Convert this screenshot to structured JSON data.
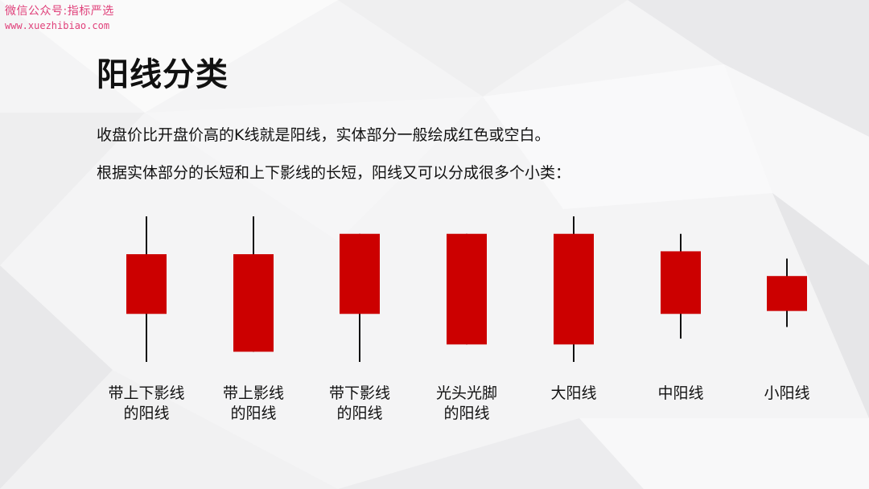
{
  "watermark": {
    "line1": "微信公众号:指标严选",
    "line2": "www.xuezhibiao.com"
  },
  "title": "阳线分类",
  "description": [
    "收盘价比开盘价高的K线就是阳线，实体部分一般绘成红色或空白。",
    "根据实体部分的长短和上下影线的长短，阳线又可以分成很多个小类："
  ],
  "colors": {
    "candle_body": "#cc0000",
    "wick": "#111111",
    "background": "#f4f4f5"
  },
  "candles": [
    {
      "label_lines": [
        "带上下影线",
        "的阳线"
      ],
      "relative_ohlc": {
        "high": 100,
        "close": 74,
        "open": 33,
        "low": 0
      }
    },
    {
      "label_lines": [
        "带上影线",
        "的阳线"
      ],
      "relative_ohlc": {
        "high": 100,
        "close": 74,
        "open": 7,
        "low": 7
      }
    },
    {
      "label_lines": [
        "带下影线",
        "的阳线"
      ],
      "relative_ohlc": {
        "high": 88,
        "close": 88,
        "open": 33,
        "low": 0
      }
    },
    {
      "label_lines": [
        "光头光脚",
        "的阳线"
      ],
      "relative_ohlc": {
        "high": 88,
        "close": 88,
        "open": 12,
        "low": 12
      }
    },
    {
      "label_lines": [
        "大阳线"
      ],
      "relative_ohlc": {
        "high": 100,
        "close": 88,
        "open": 12,
        "low": 0
      }
    },
    {
      "label_lines": [
        "中阳线"
      ],
      "relative_ohlc": {
        "high": 88,
        "close": 76,
        "open": 33,
        "low": 16
      }
    },
    {
      "label_lines": [
        "小阳线"
      ],
      "relative_ohlc": {
        "high": 71,
        "close": 59,
        "open": 35,
        "low": 24
      }
    }
  ]
}
